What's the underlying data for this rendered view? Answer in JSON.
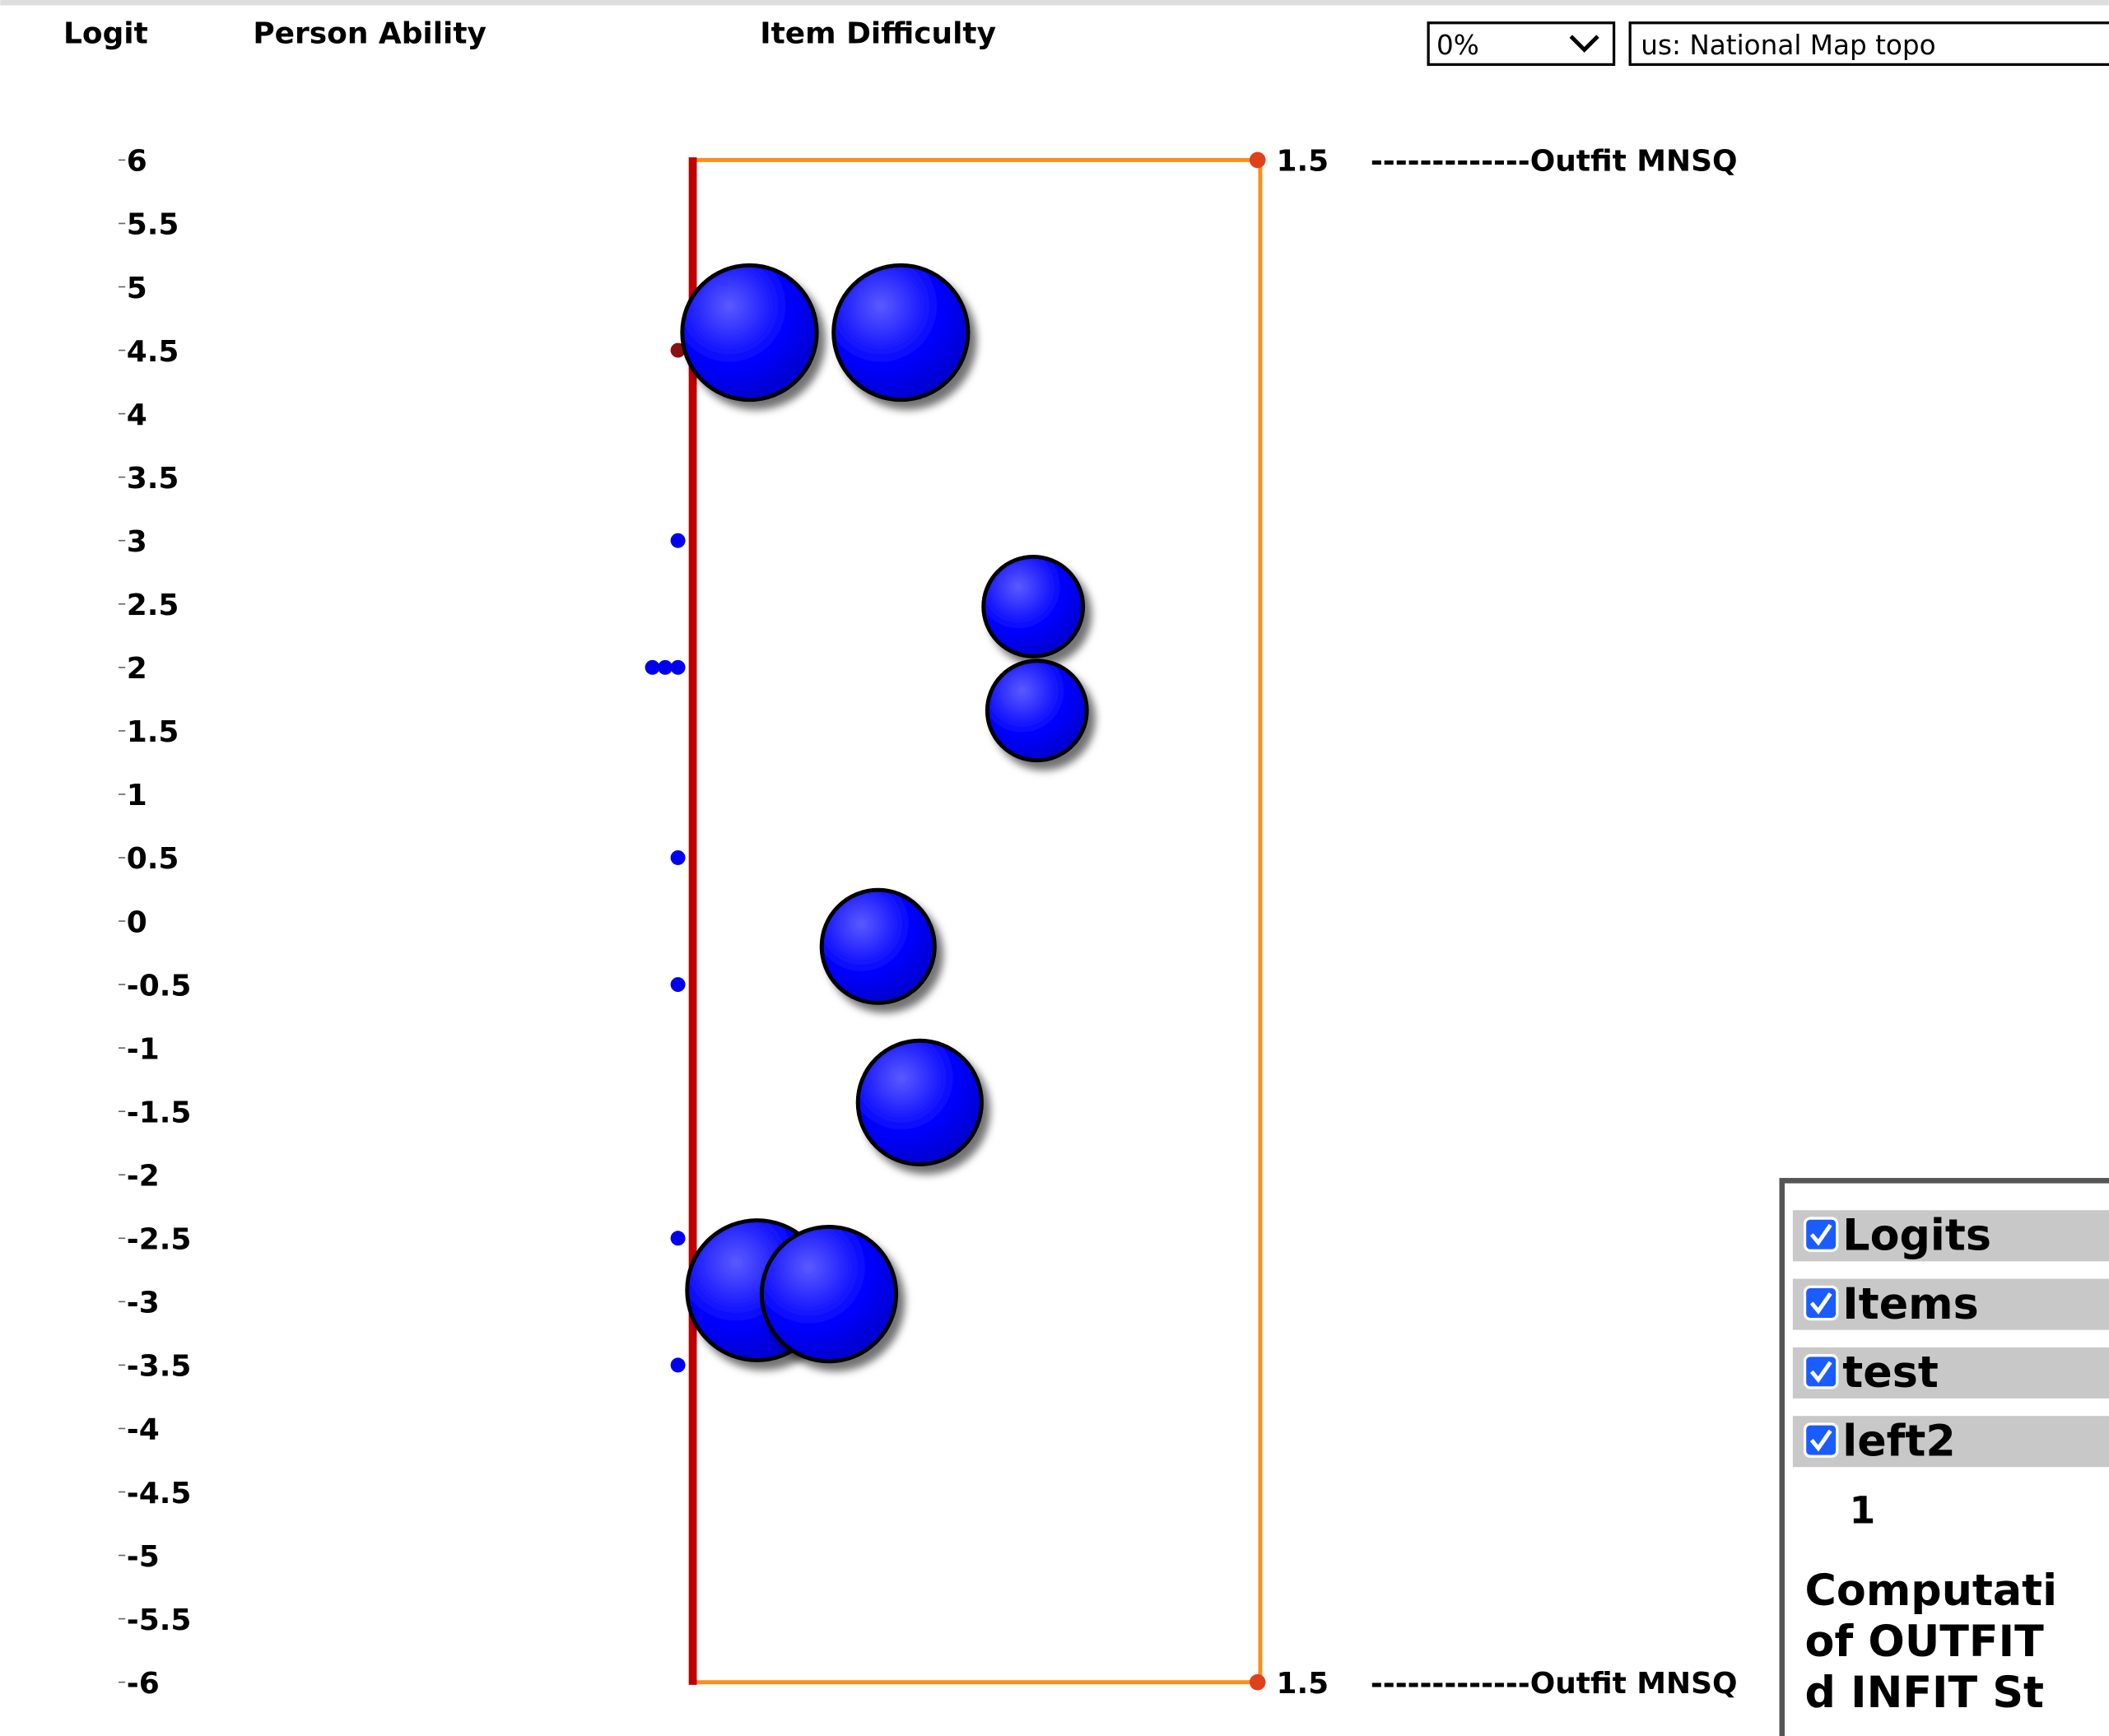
{
  "header": {
    "columns": [
      "Logit",
      "Person Ability",
      "Item Difficulty"
    ]
  },
  "toolbar": {
    "opacity": "0%",
    "basemap": "us: National Map topo"
  },
  "chart_data": {
    "type": "scatter",
    "ylim": [
      -6,
      6
    ],
    "yticks": [
      6,
      5.5,
      5,
      4.5,
      4,
      3.5,
      3,
      2.5,
      2,
      1.5,
      1,
      0.5,
      0,
      -0.5,
      -1,
      -1.5,
      -2,
      -2.5,
      -3,
      -3.5,
      -4,
      -4.5,
      -5,
      -5.5,
      -6
    ],
    "xlim": [
      0,
      1.5
    ],
    "xticks": [
      1.5
    ],
    "x_axis_label": "-------------Outfit MNSQ",
    "persons": {
      "values": [
        4.5,
        3,
        2,
        2,
        2,
        0.5,
        -0.5,
        -2.5,
        -3.5
      ],
      "colors": [
        "#8b1010",
        "#0000ee",
        "#0000ee",
        "#0000ee",
        "#0000ee",
        "#0000ee",
        "#0000ee",
        "#0000ee",
        "#0000ee"
      ]
    },
    "items": {
      "values": [
        4.64,
        4.64,
        2.48,
        1.66,
        -0.2,
        -1.43,
        -2.91,
        -2.94
      ],
      "outfit": [
        0.15,
        0.55,
        0.9,
        0.91,
        0.49,
        0.6,
        0.17,
        0.36
      ],
      "size": [
        50,
        50,
        37,
        37,
        42,
        46,
        52,
        50
      ],
      "color": "#0000ff"
    }
  },
  "layers": {
    "items": [
      "Logits",
      "Items",
      "test",
      "left2"
    ],
    "count": "1",
    "note_lines": [
      "Computati",
      "of OUTFIT",
      "d INFIT St"
    ]
  }
}
